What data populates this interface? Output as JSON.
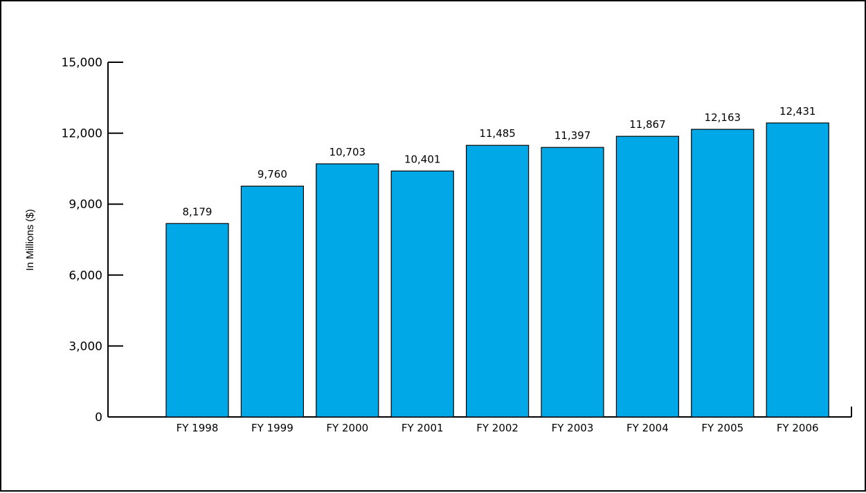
{
  "chart_data": {
    "type": "bar",
    "title": "",
    "xlabel": "",
    "ylabel": "In Millions ($)",
    "categories": [
      "FY 1998",
      "FY 1999",
      "FY 2000",
      "FY 2001",
      "FY 2002",
      "FY 2003",
      "FY 2004",
      "FY 2005",
      "FY 2006"
    ],
    "values": [
      8179,
      9760,
      10703,
      10401,
      11485,
      11397,
      11867,
      12163,
      12431
    ],
    "value_labels": [
      "8,179",
      "9,760",
      "10,703",
      "10,401",
      "11,485",
      "11,397",
      "11,867",
      "12,163",
      "12,431"
    ],
    "ylim": [
      0,
      15000
    ],
    "yticks": [
      0,
      3000,
      6000,
      9000,
      12000,
      15000
    ],
    "ytick_labels": [
      "0",
      "3,000",
      "6,000",
      "9,000",
      "12,000",
      "15,000"
    ],
    "grid": false,
    "legend": "none",
    "bar_color": "#00a8e8",
    "bar_edge_color": "#000000"
  }
}
